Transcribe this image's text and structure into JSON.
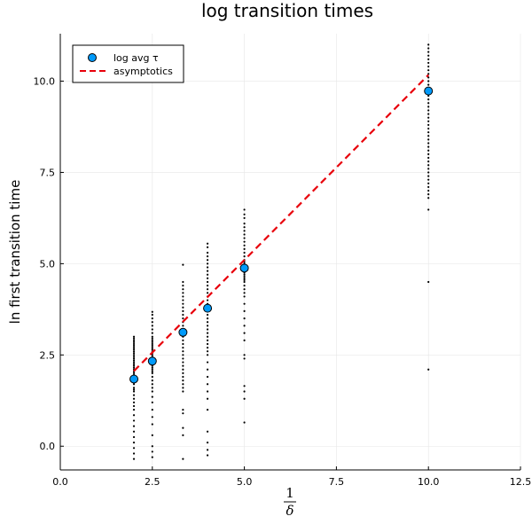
{
  "chart_data": {
    "type": "scatter",
    "title": "log transition times",
    "ylabel": "ln first transition time",
    "xlabel_num": "1",
    "xlabel_den": "δ",
    "xlim": [
      0,
      12.5
    ],
    "ylim": [
      -0.65,
      11.3
    ],
    "xticks": [
      0.0,
      2.5,
      5.0,
      7.5,
      10.0,
      12.5
    ],
    "xtick_labels": [
      "0.0",
      "2.5",
      "5.0",
      "7.5",
      "10.0",
      "12.5"
    ],
    "yticks": [
      0.0,
      2.5,
      5.0,
      7.5,
      10.0
    ],
    "ytick_labels": [
      "0.0",
      "2.5",
      "5.0",
      "7.5",
      "10.0"
    ],
    "grid": true,
    "legend_position": "top-left",
    "series": [
      {
        "name": "log avg τ",
        "kind": "points",
        "color": "#009AFA",
        "x": [
          2.0,
          2.5,
          3.333,
          4.0,
          5.0,
          10.0
        ],
        "y": [
          1.84,
          2.33,
          3.12,
          3.78,
          4.88,
          9.73
        ]
      },
      {
        "name": "asymptotics",
        "kind": "dashed-line",
        "color": "#E8000B",
        "x": [
          2.0,
          10.0
        ],
        "y": [
          2.06,
          10.17
        ]
      }
    ],
    "samples": [
      {
        "x": 2.0,
        "y": [
          -0.35,
          -0.2,
          -0.05,
          0.1,
          0.25,
          0.4,
          0.55,
          0.7,
          0.85,
          1.0,
          1.1,
          1.2,
          1.3,
          1.4,
          1.5,
          1.55,
          1.6,
          1.7,
          1.75,
          1.8,
          1.85,
          1.9,
          1.95,
          2.0,
          2.05,
          2.1,
          2.15,
          2.2,
          2.25,
          2.3,
          2.35,
          2.4,
          2.45,
          2.5,
          2.55,
          2.6,
          2.65,
          2.7,
          2.75,
          2.8,
          2.85,
          2.9,
          2.95,
          3.0
        ]
      },
      {
        "x": 2.5,
        "y": [
          -0.3,
          -0.15,
          0.0,
          0.3,
          0.6,
          0.8,
          1.0,
          1.2,
          1.35,
          1.5,
          1.6,
          1.7,
          1.8,
          1.9,
          2.0,
          2.05,
          2.1,
          2.15,
          2.2,
          2.25,
          2.3,
          2.35,
          2.4,
          2.45,
          2.5,
          2.55,
          2.6,
          2.65,
          2.7,
          2.75,
          2.8,
          2.85,
          2.9,
          2.95,
          3.0,
          3.1,
          3.2,
          3.3,
          3.4,
          3.5,
          3.6,
          3.68
        ]
      },
      {
        "x": 3.333,
        "y": [
          -0.35,
          0.3,
          0.5,
          0.9,
          1.0,
          1.5,
          1.6,
          1.7,
          1.8,
          1.9,
          2.0,
          2.1,
          2.2,
          2.3,
          2.4,
          2.5,
          2.6,
          2.7,
          2.8,
          2.9,
          3.0,
          3.05,
          3.1,
          3.15,
          3.2,
          3.3,
          3.4,
          3.5,
          3.6,
          3.7,
          3.8,
          3.9,
          4.0,
          4.1,
          4.2,
          4.3,
          4.4,
          4.5,
          4.97
        ]
      },
      {
        "x": 4.0,
        "y": [
          -0.25,
          -0.1,
          0.1,
          0.4,
          1.0,
          1.3,
          1.5,
          1.7,
          1.9,
          2.1,
          2.3,
          2.5,
          2.6,
          2.7,
          2.8,
          2.9,
          3.0,
          3.1,
          3.2,
          3.3,
          3.4,
          3.5,
          3.6,
          3.7,
          3.8,
          3.9,
          4.0,
          4.1,
          4.2,
          4.3,
          4.4,
          4.5,
          4.6,
          4.7,
          4.8,
          4.9,
          5.0,
          5.1,
          5.2,
          5.3,
          5.45,
          5.55
        ]
      },
      {
        "x": 5.0,
        "y": [
          0.65,
          1.3,
          1.5,
          1.65,
          2.4,
          2.5,
          2.9,
          3.1,
          3.3,
          3.5,
          3.7,
          3.9,
          4.1,
          4.2,
          4.3,
          4.4,
          4.5,
          4.55,
          4.6,
          4.65,
          4.7,
          4.75,
          4.8,
          4.85,
          4.9,
          4.95,
          5.0,
          5.05,
          5.1,
          5.2,
          5.3,
          5.4,
          5.5,
          5.6,
          5.7,
          5.8,
          5.9,
          6.0,
          6.1,
          6.25,
          6.35,
          6.48
        ]
      },
      {
        "x": 10.0,
        "y": [
          2.1,
          4.5,
          6.48,
          6.8,
          6.9,
          7.0,
          7.1,
          7.2,
          7.3,
          7.4,
          7.5,
          7.6,
          7.7,
          7.8,
          7.9,
          8.0,
          8.1,
          8.2,
          8.3,
          8.4,
          8.5,
          8.6,
          8.7,
          8.8,
          8.9,
          9.0,
          9.1,
          9.2,
          9.3,
          9.4,
          9.5,
          9.6,
          9.7,
          9.8,
          9.9,
          10.0,
          10.1,
          10.2,
          10.3,
          10.4,
          10.5,
          10.6,
          10.7,
          10.8,
          10.9,
          11.0
        ]
      }
    ]
  }
}
